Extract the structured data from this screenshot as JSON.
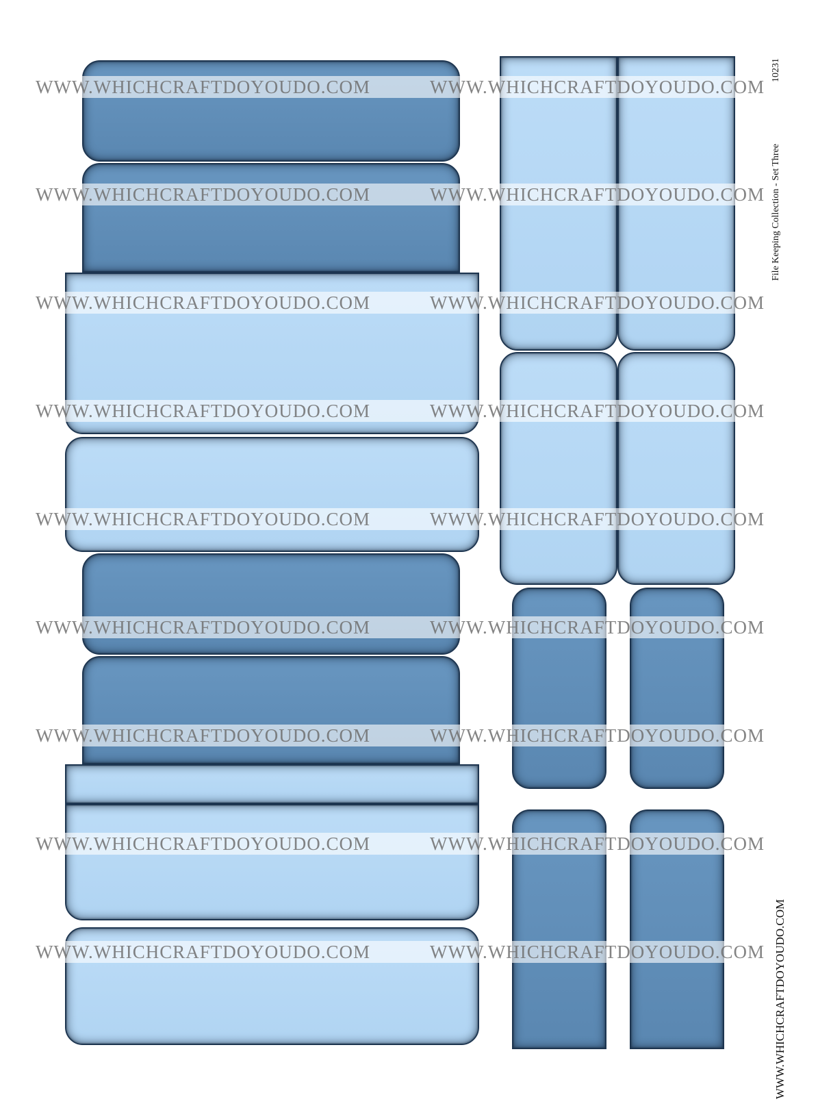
{
  "watermark": "WWW.WHICHCRAFTDOYOUDO.COM",
  "side_label": "File Keeping Collection - Set Three",
  "product_code": "10231",
  "footer_url": "WWW.WHICHCRAFTDOYOUDO.COM",
  "colors": {
    "dark_tab": "#6290ba",
    "light_tab": "#b7d9f5",
    "border": "#1d3550"
  }
}
